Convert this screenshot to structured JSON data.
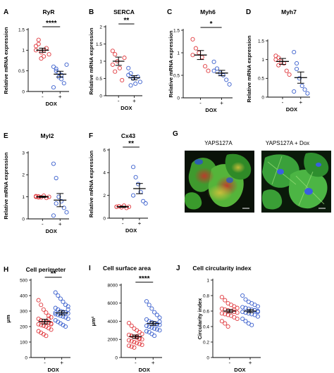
{
  "panel_g": {
    "letter": "G",
    "left_label": "YAPS127A",
    "right_label": "YAPS127A + Dox"
  },
  "chart_data": [
    {
      "type": "scatter",
      "letter": "A",
      "title": "RyR",
      "ylabel": "Relative mRNA expression",
      "categories": [
        "-",
        "+"
      ],
      "group_label": "DOX",
      "significance": "****",
      "ylim": [
        0,
        1.5
      ],
      "yticks": [
        0,
        0.5,
        1,
        1.5
      ],
      "series": [
        {
          "color": "#e0393e",
          "mean": 1.0,
          "sem": 0.05,
          "values": [
            1.1,
            1.25,
            0.95,
            0.85,
            1.05,
            0.9,
            1.0,
            1.15,
            0.8,
            1.0
          ]
        },
        {
          "color": "#3a5fcd",
          "mean": 0.42,
          "sem": 0.07,
          "values": [
            0.6,
            0.55,
            0.45,
            0.3,
            0.2,
            0.65,
            0.1,
            0.5,
            0.35,
            0.4
          ]
        }
      ]
    },
    {
      "type": "scatter",
      "letter": "B",
      "title": "SERCA",
      "ylabel": "Relative mRNA expression",
      "categories": [
        "-",
        "+"
      ],
      "group_label": "DOX",
      "significance": "**",
      "ylim": [
        0,
        2.0
      ],
      "yticks": [
        0,
        0.5,
        1,
        1.5,
        2
      ],
      "series": [
        {
          "color": "#e0393e",
          "mean": 1.0,
          "sem": 0.12,
          "values": [
            1.3,
            1.2,
            1.0,
            0.8,
            0.45,
            1.1,
            0.9,
            0.7
          ]
        },
        {
          "color": "#3a5fcd",
          "mean": 0.52,
          "sem": 0.06,
          "values": [
            0.8,
            0.65,
            0.5,
            0.35,
            0.55,
            0.4,
            0.6,
            0.3,
            0.5
          ]
        }
      ]
    },
    {
      "type": "scatter",
      "letter": "C",
      "title": "Myh6",
      "ylabel": "Relative mRNA expression",
      "categories": [
        "-",
        "+"
      ],
      "group_label": "DOX",
      "significance": "*",
      "ylim": [
        0,
        1.5
      ],
      "yticks": [
        0,
        0.5,
        1,
        1.5
      ],
      "series": [
        {
          "color": "#e0393e",
          "mean": 0.95,
          "sem": 0.1,
          "values": [
            1.3,
            1.1,
            1.0,
            0.9,
            0.7,
            0.6,
            0.95
          ]
        },
        {
          "color": "#3a5fcd",
          "mean": 0.55,
          "sem": 0.06,
          "values": [
            0.8,
            0.65,
            0.55,
            0.5,
            0.4,
            0.3,
            0.6
          ]
        }
      ]
    },
    {
      "type": "scatter",
      "letter": "D",
      "title": "Myh7",
      "ylabel": "Relative mRNA expression",
      "categories": [
        "-",
        "+"
      ],
      "group_label": "DOX",
      "significance": "",
      "ylim": [
        0,
        1.5
      ],
      "yticks": [
        0,
        0.5,
        1,
        1.5
      ],
      "series": [
        {
          "color": "#e0393e",
          "mean": 0.95,
          "sem": 0.08,
          "values": [
            1.1,
            1.05,
            0.95,
            0.9,
            0.7,
            0.6,
            1.0,
            0.85
          ]
        },
        {
          "color": "#3a5fcd",
          "mean": 0.52,
          "sem": 0.15,
          "values": [
            1.2,
            0.9,
            0.5,
            0.3,
            0.2,
            0.1,
            0.15,
            0.75
          ]
        }
      ]
    },
    {
      "type": "scatter",
      "letter": "E",
      "title": "Myl2",
      "ylabel": "Relative mRNA expression",
      "categories": [
        "-",
        "+"
      ],
      "group_label": "DOX",
      "significance": "",
      "ylim": [
        0,
        3
      ],
      "yticks": [
        0,
        1,
        2,
        3
      ],
      "series": [
        {
          "color": "#e0393e",
          "mean": 1.0,
          "sem": 0.03,
          "values": [
            1.0,
            1.02,
            0.98,
            1.05,
            0.95,
            1.0,
            1.03,
            0.97
          ]
        },
        {
          "color": "#3a5fcd",
          "mean": 0.85,
          "sem": 0.3,
          "values": [
            2.5,
            1.85,
            1.0,
            0.8,
            0.5,
            0.3,
            0.15,
            0.7
          ]
        }
      ]
    },
    {
      "type": "scatter",
      "letter": "F",
      "title": "Cx43",
      "ylabel": "Relative mRNA expression",
      "categories": [
        "-",
        "+"
      ],
      "group_label": "DOX",
      "significance": "**",
      "ylim": [
        0,
        6
      ],
      "yticks": [
        0,
        2,
        4,
        6
      ],
      "series": [
        {
          "color": "#e0393e",
          "mean": 1.0,
          "sem": 0.05,
          "values": [
            1.0,
            1.05,
            0.95,
            1.1,
            0.9,
            1.0,
            1.0
          ]
        },
        {
          "color": "#3a5fcd",
          "mean": 2.6,
          "sem": 0.45,
          "values": [
            4.5,
            3.6,
            3.0,
            2.3,
            1.5,
            1.3,
            2.0
          ]
        }
      ]
    },
    {
      "type": "scatter",
      "letter": "H",
      "title": "Cell perimeter",
      "ylabel": "μm",
      "categories": [
        "-",
        "+"
      ],
      "group_label": "DOX",
      "significance": "**",
      "ylim": [
        0,
        500
      ],
      "yticks": [
        0,
        100,
        200,
        300,
        400,
        500
      ],
      "series": [
        {
          "color": "#e0393e",
          "mean": 232,
          "sem": 15,
          "values": [
            370,
            340,
            310,
            290,
            270,
            260,
            250,
            240,
            235,
            230,
            225,
            220,
            215,
            210,
            205,
            200,
            190,
            180,
            170,
            160,
            150,
            140,
            250,
            215
          ]
        },
        {
          "color": "#3a5fcd",
          "mean": 288,
          "sem": 13,
          "values": [
            420,
            400,
            380,
            360,
            340,
            330,
            320,
            310,
            300,
            295,
            290,
            285,
            280,
            275,
            270,
            265,
            260,
            250,
            240,
            230,
            220,
            210,
            200,
            310,
            290
          ]
        }
      ]
    },
    {
      "type": "scatter",
      "letter": "I",
      "title": "Cell surface area",
      "ylabel": "μm²",
      "categories": [
        "-",
        "+"
      ],
      "group_label": "DOX",
      "significance": "****",
      "ylim": [
        0,
        8000
      ],
      "yticks": [
        0,
        2000,
        4000,
        6000,
        8000
      ],
      "series": [
        {
          "color": "#e0393e",
          "mean": 2300,
          "sem": 180,
          "values": [
            3800,
            3500,
            3200,
            3000,
            2800,
            2600,
            2500,
            2400,
            2300,
            2200,
            2100,
            2000,
            1900,
            1800,
            1700,
            1600,
            1500,
            1400,
            1300,
            1200,
            1100,
            2350,
            2050
          ]
        },
        {
          "color": "#3a5fcd",
          "mean": 3750,
          "sem": 200,
          "values": [
            6200,
            5800,
            5400,
            5000,
            4700,
            4400,
            4200,
            4000,
            3900,
            3800,
            3700,
            3600,
            3500,
            3400,
            3300,
            3200,
            3100,
            3000,
            2900,
            2800,
            2600,
            2400,
            3650,
            3950
          ]
        }
      ]
    },
    {
      "type": "scatter",
      "letter": "J",
      "title": "Cell circularity index",
      "ylabel": "Circularity index",
      "categories": [
        "-",
        "+"
      ],
      "group_label": "DOX",
      "significance": "",
      "ylim": [
        0,
        1.0
      ],
      "yticks": [
        0,
        0.2,
        0.4,
        0.6,
        0.8,
        1.0
      ],
      "series": [
        {
          "color": "#e0393e",
          "mean": 0.6,
          "sem": 0.02,
          "values": [
            0.78,
            0.74,
            0.7,
            0.68,
            0.66,
            0.64,
            0.63,
            0.62,
            0.61,
            0.6,
            0.59,
            0.58,
            0.57,
            0.56,
            0.55,
            0.54,
            0.52,
            0.5,
            0.47,
            0.44,
            0.4,
            0.6,
            0.62
          ]
        },
        {
          "color": "#3a5fcd",
          "mean": 0.6,
          "sem": 0.02,
          "values": [
            0.8,
            0.75,
            0.72,
            0.7,
            0.68,
            0.66,
            0.65,
            0.64,
            0.63,
            0.62,
            0.61,
            0.6,
            0.59,
            0.58,
            0.57,
            0.56,
            0.55,
            0.53,
            0.5,
            0.47,
            0.44,
            0.42,
            0.61,
            0.59
          ]
        }
      ]
    }
  ]
}
